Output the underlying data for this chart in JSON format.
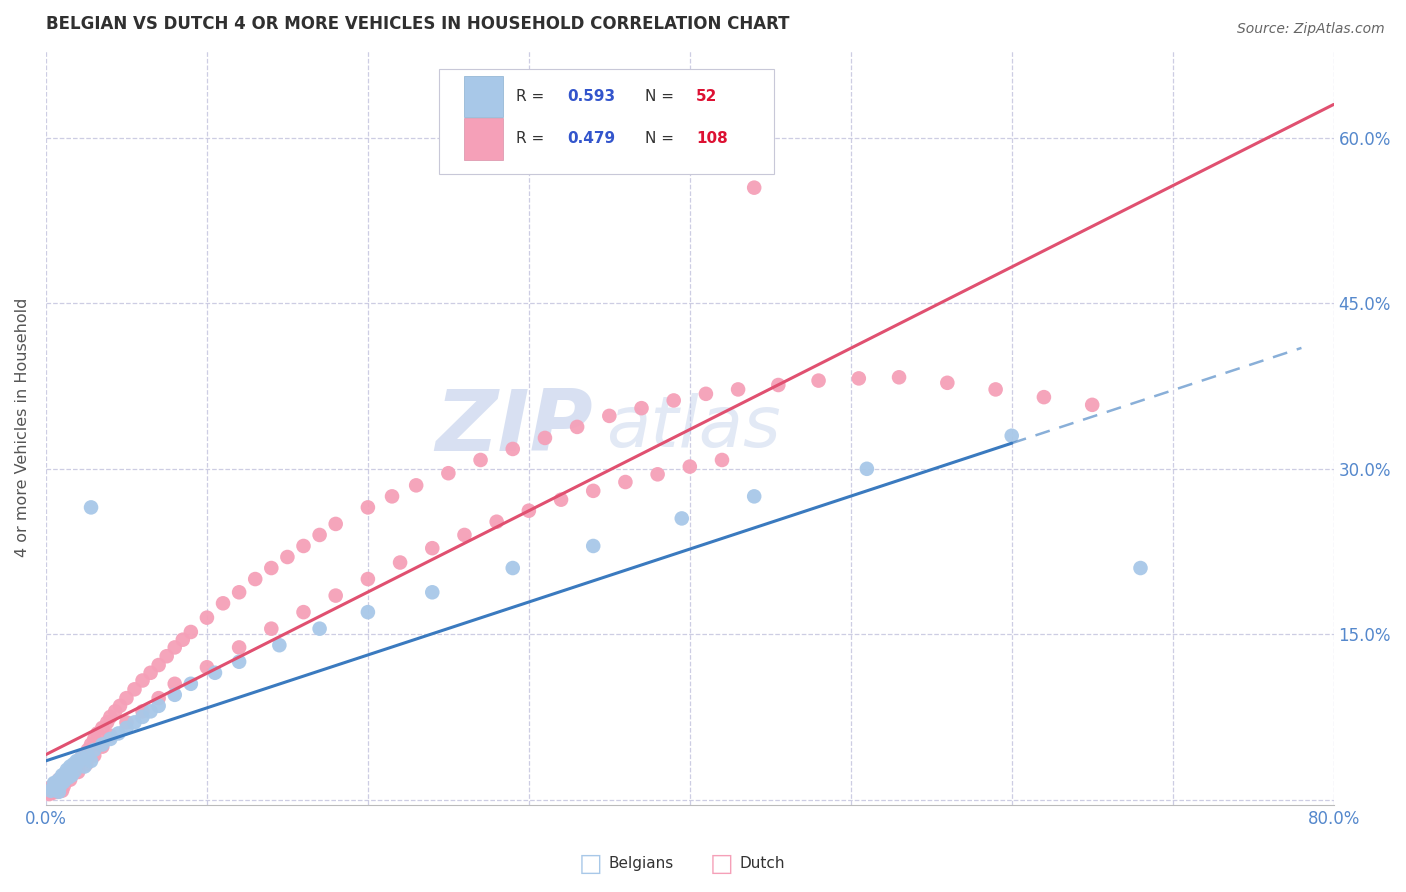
{
  "title": "BELGIAN VS DUTCH 4 OR MORE VEHICLES IN HOUSEHOLD CORRELATION CHART",
  "source": "Source: ZipAtlas.com",
  "ylabel": "4 or more Vehicles in Household",
  "xlim": [
    0.0,
    0.8
  ],
  "ylim": [
    -0.005,
    0.68
  ],
  "ytick_positions": [
    0.0,
    0.15,
    0.3,
    0.45,
    0.6
  ],
  "ytick_labels": [
    "",
    "15.0%",
    "30.0%",
    "45.0%",
    "60.0%"
  ],
  "belgian_R": 0.593,
  "belgian_N": 52,
  "dutch_R": 0.479,
  "dutch_N": 108,
  "belgian_color": "#a8c8e8",
  "dutch_color": "#f5a0b8",
  "belgian_line_color": "#3a7abf",
  "dutch_line_color": "#e05070",
  "watermark_zip": "ZIP",
  "watermark_atlas": "atlas",
  "background_color": "#ffffff",
  "grid_color": "#c8c8e0",
  "title_color": "#303030",
  "axis_label_color": "#555555",
  "tick_label_color": "#5588cc",
  "legend_R_color": "#3355cc",
  "legend_N_color": "#dd1133",
  "belgian_x": [
    0.003,
    0.004,
    0.005,
    0.005,
    0.006,
    0.006,
    0.007,
    0.007,
    0.008,
    0.008,
    0.009,
    0.01,
    0.01,
    0.011,
    0.012,
    0.013,
    0.014,
    0.015,
    0.016,
    0.017,
    0.018,
    0.019,
    0.02,
    0.022,
    0.024,
    0.026,
    0.028,
    0.028,
    0.03,
    0.035,
    0.04,
    0.045,
    0.05,
    0.055,
    0.06,
    0.065,
    0.07,
    0.08,
    0.09,
    0.105,
    0.12,
    0.145,
    0.17,
    0.2,
    0.24,
    0.29,
    0.34,
    0.395,
    0.44,
    0.51,
    0.6,
    0.68
  ],
  "belgian_y": [
    0.008,
    0.01,
    0.012,
    0.015,
    0.009,
    0.014,
    0.011,
    0.016,
    0.007,
    0.018,
    0.013,
    0.02,
    0.022,
    0.016,
    0.024,
    0.027,
    0.02,
    0.03,
    0.022,
    0.032,
    0.026,
    0.035,
    0.034,
    0.038,
    0.03,
    0.04,
    0.035,
    0.265,
    0.045,
    0.05,
    0.055,
    0.06,
    0.065,
    0.07,
    0.075,
    0.08,
    0.085,
    0.095,
    0.105,
    0.115,
    0.125,
    0.14,
    0.155,
    0.17,
    0.188,
    0.21,
    0.23,
    0.255,
    0.275,
    0.3,
    0.33,
    0.21
  ],
  "dutch_x": [
    0.002,
    0.003,
    0.003,
    0.004,
    0.004,
    0.005,
    0.005,
    0.006,
    0.006,
    0.007,
    0.007,
    0.008,
    0.008,
    0.009,
    0.009,
    0.01,
    0.01,
    0.011,
    0.011,
    0.012,
    0.013,
    0.014,
    0.015,
    0.015,
    0.016,
    0.017,
    0.018,
    0.019,
    0.02,
    0.021,
    0.022,
    0.024,
    0.026,
    0.028,
    0.03,
    0.032,
    0.035,
    0.038,
    0.04,
    0.043,
    0.046,
    0.05,
    0.055,
    0.06,
    0.065,
    0.07,
    0.075,
    0.08,
    0.085,
    0.09,
    0.1,
    0.11,
    0.12,
    0.13,
    0.14,
    0.15,
    0.16,
    0.17,
    0.18,
    0.2,
    0.215,
    0.23,
    0.25,
    0.27,
    0.29,
    0.31,
    0.33,
    0.35,
    0.37,
    0.39,
    0.41,
    0.43,
    0.455,
    0.48,
    0.505,
    0.53,
    0.56,
    0.59,
    0.62,
    0.65,
    0.015,
    0.02,
    0.025,
    0.03,
    0.035,
    0.04,
    0.05,
    0.06,
    0.07,
    0.08,
    0.1,
    0.12,
    0.14,
    0.16,
    0.18,
    0.2,
    0.22,
    0.24,
    0.26,
    0.28,
    0.3,
    0.32,
    0.34,
    0.36,
    0.38,
    0.4,
    0.42,
    0.44
  ],
  "dutch_y": [
    0.005,
    0.007,
    0.01,
    0.006,
    0.012,
    0.009,
    0.014,
    0.008,
    0.015,
    0.007,
    0.016,
    0.01,
    0.018,
    0.009,
    0.019,
    0.008,
    0.02,
    0.012,
    0.022,
    0.018,
    0.02,
    0.024,
    0.022,
    0.027,
    0.025,
    0.03,
    0.028,
    0.033,
    0.032,
    0.035,
    0.038,
    0.04,
    0.045,
    0.05,
    0.055,
    0.06,
    0.065,
    0.07,
    0.075,
    0.08,
    0.085,
    0.092,
    0.1,
    0.108,
    0.115,
    0.122,
    0.13,
    0.138,
    0.145,
    0.152,
    0.165,
    0.178,
    0.188,
    0.2,
    0.21,
    0.22,
    0.23,
    0.24,
    0.25,
    0.265,
    0.275,
    0.285,
    0.296,
    0.308,
    0.318,
    0.328,
    0.338,
    0.348,
    0.355,
    0.362,
    0.368,
    0.372,
    0.376,
    0.38,
    0.382,
    0.383,
    0.378,
    0.372,
    0.365,
    0.358,
    0.018,
    0.025,
    0.032,
    0.04,
    0.048,
    0.058,
    0.07,
    0.08,
    0.092,
    0.105,
    0.12,
    0.138,
    0.155,
    0.17,
    0.185,
    0.2,
    0.215,
    0.228,
    0.24,
    0.252,
    0.262,
    0.272,
    0.28,
    0.288,
    0.295,
    0.302,
    0.308,
    0.555
  ]
}
